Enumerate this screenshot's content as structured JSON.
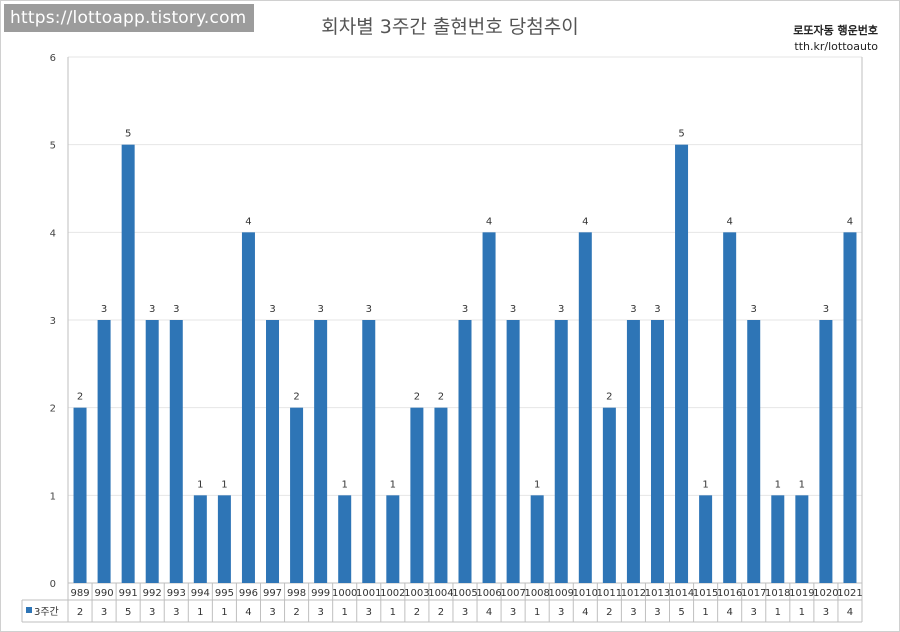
{
  "watermark": "https://lottoapp.tistory.com",
  "brand": {
    "line1": "로또자동 행운번호",
    "line2": "tth.kr/lottoauto"
  },
  "colors": {
    "bar": "#2e75b6",
    "grid": "#e6e6e6",
    "axis": "#bfbfbf"
  },
  "chart_data": {
    "type": "bar",
    "title": "회차별 3주간 출현번호 당첨추이",
    "categories": [
      "989",
      "990",
      "991",
      "992",
      "993",
      "994",
      "995",
      "996",
      "997",
      "998",
      "999",
      "1000",
      "1001",
      "1002",
      "1003",
      "1004",
      "1005",
      "1006",
      "1007",
      "1008",
      "1009",
      "1010",
      "1011",
      "1012",
      "1013",
      "1014",
      "1015",
      "1016",
      "1017",
      "1018",
      "1019",
      "1020",
      "1021"
    ],
    "series": [
      {
        "name": "3주간",
        "values": [
          2,
          3,
          5,
          3,
          3,
          1,
          1,
          4,
          3,
          2,
          3,
          1,
          3,
          1,
          2,
          2,
          3,
          4,
          3,
          1,
          3,
          4,
          2,
          3,
          3,
          5,
          1,
          4,
          3,
          1,
          1,
          3,
          4
        ]
      }
    ],
    "ylim": [
      0,
      6
    ],
    "yticks": [
      "0",
      "1",
      "2",
      "3",
      "4",
      "5",
      "6"
    ],
    "grid": true,
    "data_labels": true,
    "data_table": true
  }
}
